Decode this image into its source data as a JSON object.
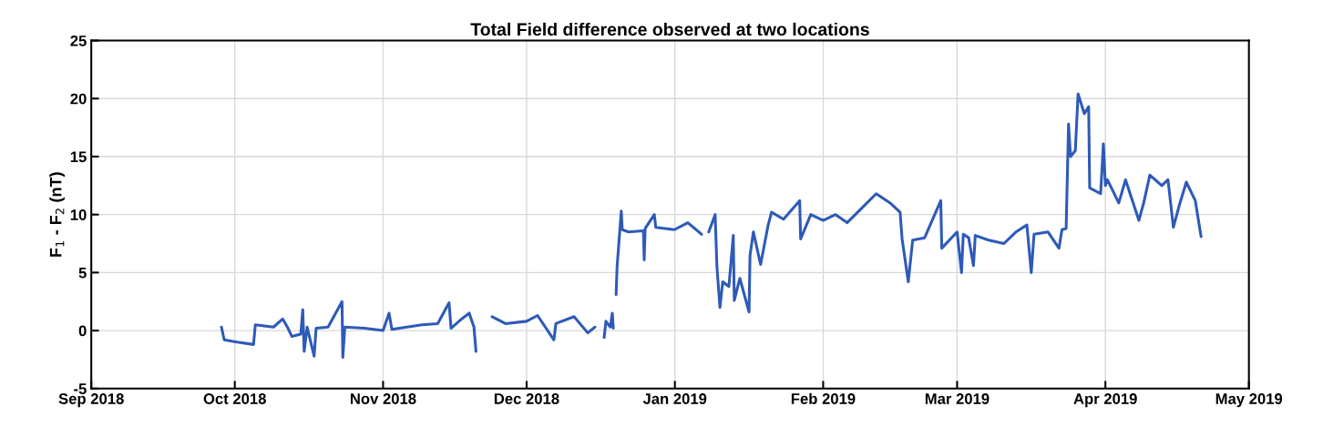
{
  "chart_data": {
    "type": "line",
    "title": "Total Field difference observed at two locations",
    "ylabel": "F$_{1}$ - F$_{2}$ (nT)",
    "xlim": [
      "2018-09-01",
      "2019-05-01"
    ],
    "xticks": [
      {
        "value": "2018-09-01",
        "label": "Sep 2018"
      },
      {
        "value": "2018-10-01",
        "label": "Oct 2018"
      },
      {
        "value": "2018-11-01",
        "label": "Nov 2018"
      },
      {
        "value": "2018-12-01",
        "label": "Dec 2018"
      },
      {
        "value": "2019-01-01",
        "label": "Jan 2019"
      },
      {
        "value": "2019-02-01",
        "label": "Feb 2019"
      },
      {
        "value": "2019-03-01",
        "label": "Mar 2019"
      },
      {
        "value": "2019-04-01",
        "label": "Apr 2019"
      },
      {
        "value": "2019-05-01",
        "label": "May 2019"
      }
    ],
    "ylim": [
      -5,
      25
    ],
    "yticks": [
      -5,
      0,
      5,
      10,
      15,
      20,
      25
    ],
    "grid": true,
    "marker": "none",
    "line_style": "solid",
    "series": [
      {
        "color": "#2e5ab8",
        "x": [
          "2018-09-28T05:00",
          "2018-09-28T19:00",
          "2018-10-01T12:00",
          "2018-10-04T22:00",
          "2018-10-05T07:00",
          "2018-10-09T02:00",
          "2018-10-11T00:00",
          "2018-10-12T03:00",
          "2018-10-12T22:00",
          "2018-10-14T19:00",
          "2018-10-15T05:00",
          "2018-10-15T12:00",
          "2018-10-16T03:00",
          "2018-10-17T14:00",
          "2018-10-18T00:00",
          "2018-10-20T12:00",
          "2018-10-23T10:00",
          "2018-10-23T14:00",
          "2018-10-24T00:00",
          "2018-10-28T03:00",
          "2018-11-01T00:00",
          "2018-11-02T06:00",
          "2018-11-02T20:00",
          "2018-11-09T03:00",
          "2018-11-12T10:00",
          "2018-11-14T19:00",
          "2018-11-15T05:00",
          "2018-11-17T03:00",
          "2018-11-19T00:00",
          "2018-11-20T00:00",
          "2018-11-20T10:00",
          "2018-11-22T12:00",
          "2018-11-23T19:00",
          "2018-11-26T14:00",
          "2018-12-01T00:00",
          "2018-12-03T07:00",
          "2018-12-06T17:00",
          "2018-12-07T03:00",
          "2018-12-10T22:00",
          "2018-12-13T19:00",
          "2018-12-15T07:00",
          "2018-12-16T12:00",
          "2018-12-17T05:00",
          "2018-12-17T14:00",
          "2018-12-18T12:00",
          "2018-12-18T22:00",
          "2018-12-19T03:00",
          "2018-12-19T08:00",
          "2018-12-19T17:00",
          "2018-12-19T22:00",
          "2018-12-20T19:00",
          "2018-12-21T00:00",
          "2018-12-22T07:00",
          "2018-12-25T10:00",
          "2018-12-25T14:00",
          "2018-12-25T19:00",
          "2018-12-27T17:00",
          "2018-12-28T00:00",
          "2018-12-31T22:00",
          "2019-01-03T17:00",
          "2019-01-06T14:00",
          "2019-01-07T12:00",
          "2019-01-08T02:00",
          "2019-01-09T10:00",
          "2019-01-09T19:00",
          "2019-01-10T10:00",
          "2019-01-11T00:00",
          "2019-01-12T07:00",
          "2019-01-13T05:00",
          "2019-01-13T10:00",
          "2019-01-14T14:00",
          "2019-01-16T12:00",
          "2019-01-16T17:00",
          "2019-01-17T10:00",
          "2019-01-18T22:00",
          "2019-01-20T12:00",
          "2019-01-21T05:00",
          "2019-01-23T17:00",
          "2019-01-27T02:00",
          "2019-01-27T07:00",
          "2019-01-29T10:00",
          "2019-02-01T00:00",
          "2019-02-03T14:00",
          "2019-02-06T00:00",
          "2019-02-08T22:00",
          "2019-02-12T02:00",
          "2019-02-15T00:00",
          "2019-02-17T02:00",
          "2019-02-17T12:00",
          "2019-02-18T19:00",
          "2019-02-19T17:00",
          "2019-02-22T05:00",
          "2019-02-25T14:00",
          "2019-02-25T19:00",
          "2019-03-01T00:00",
          "2019-03-01T22:00",
          "2019-03-02T07:00",
          "2019-03-03T10:00",
          "2019-03-04T10:00",
          "2019-03-04T19:00",
          "2019-03-07T14:00",
          "2019-03-10T19:00",
          "2019-03-13T07:00",
          "2019-03-15T14:00",
          "2019-03-16T12:00",
          "2019-03-17T02:00",
          "2019-03-20T00:00",
          "2019-03-22T07:00",
          "2019-03-22T22:00",
          "2019-03-23T19:00",
          "2019-03-24T07:00",
          "2019-03-24T17:00",
          "2019-03-25T17:00",
          "2019-03-26T07:00",
          "2019-03-27T14:00",
          "2019-03-28T12:00",
          "2019-03-28T17:00",
          "2019-03-31T00:00",
          "2019-03-31T14:00",
          "2019-04-01T00:00",
          "2019-04-01T10:00",
          "2019-04-03T19:00",
          "2019-04-05T05:00",
          "2019-04-08T00:00",
          "2019-04-09T00:00",
          "2019-04-10T07:00",
          "2019-04-12T19:00",
          "2019-04-14T02:00",
          "2019-04-15T05:00",
          "2019-04-16T14:00",
          "2019-04-17T22:00",
          "2019-04-19T19:00",
          "2019-04-21T00:00"
        ],
        "values": [
          0.3,
          -0.8,
          -1.0,
          -1.2,
          0.5,
          0.3,
          1.0,
          0.2,
          -0.5,
          -0.3,
          1.8,
          -1.8,
          0.3,
          -2.2,
          0.2,
          0.3,
          2.5,
          -2.3,
          0.3,
          0.2,
          0.0,
          1.5,
          0.1,
          0.5,
          0.6,
          2.4,
          0.2,
          0.9,
          1.5,
          0.3,
          -1.8,
          null,
          1.2,
          0.6,
          0.8,
          1.3,
          -0.8,
          0.6,
          1.2,
          -0.2,
          0.3,
          null,
          -0.6,
          0.8,
          0.3,
          1.5,
          0.2,
          null,
          3.1,
          5.5,
          10.3,
          8.7,
          8.5,
          8.6,
          6.1,
          8.8,
          10.0,
          8.9,
          8.7,
          9.3,
          8.3,
          null,
          8.5,
          10.0,
          5.5,
          2.0,
          4.2,
          3.8,
          8.2,
          2.6,
          4.5,
          1.6,
          6.5,
          8.5,
          5.7,
          9.1,
          10.2,
          9.6,
          11.2,
          7.9,
          10.0,
          9.5,
          10.0,
          9.3,
          10.5,
          11.8,
          11.0,
          10.2,
          7.9,
          4.2,
          7.8,
          8.0,
          11.2,
          7.1,
          8.5,
          5.0,
          8.3,
          8.0,
          5.6,
          8.2,
          7.8,
          7.5,
          8.5,
          9.1,
          5.0,
          8.3,
          8.5,
          7.1,
          8.7,
          8.8,
          17.8,
          15.0,
          15.5,
          20.4,
          18.7,
          19.3,
          12.3,
          11.8,
          16.1,
          12.5,
          13.0,
          11.0,
          13.0,
          9.5,
          11.0,
          13.4,
          12.5,
          13.0,
          8.9,
          11.0,
          12.8,
          11.2,
          8.1
        ]
      }
    ]
  }
}
